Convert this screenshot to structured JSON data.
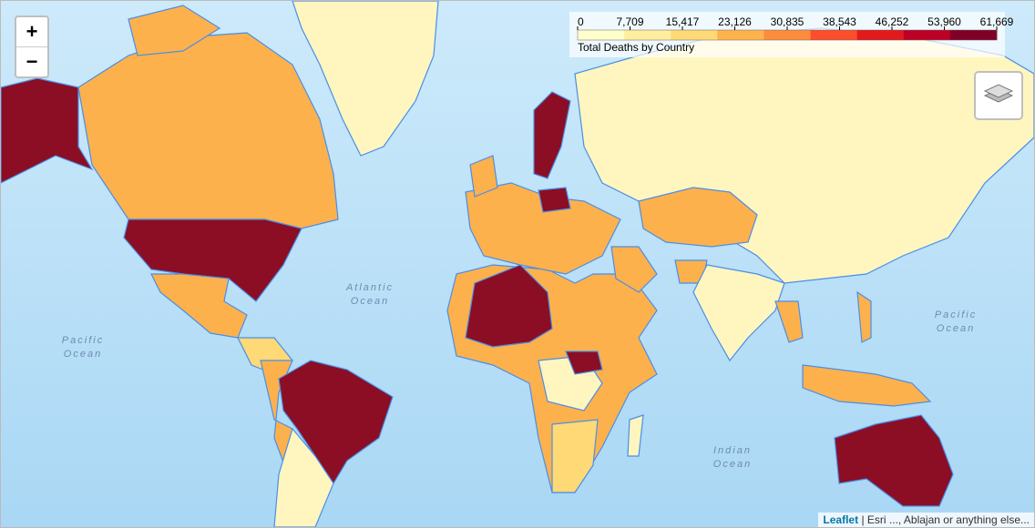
{
  "zoom": {
    "in": "+",
    "out": "−"
  },
  "legend": {
    "title": "Total Deaths by Country",
    "ticks": [
      0,
      {
        "value": 7709,
        "label": "7,709"
      },
      {
        "value": 15417,
        "label": "15,417"
      },
      {
        "value": 23126,
        "label": "23,126"
      },
      {
        "value": 30835,
        "label": "30,835"
      },
      {
        "value": 38543,
        "label": "38,543"
      },
      {
        "value": 46252,
        "label": "46,252"
      },
      {
        "value": 53960,
        "label": "53,960"
      },
      {
        "value": 61669,
        "label": "61,669"
      }
    ],
    "colors": [
      "#ffffcc",
      "#ffeda0",
      "#fed976",
      "#feb24c",
      "#fd8d3c",
      "#fc4e2a",
      "#e31a1c",
      "#bd0026",
      "#800026"
    ]
  },
  "ocean_labels": [
    {
      "lines": [
        "Atlantic",
        "Ocean"
      ]
    },
    {
      "lines": [
        "Pacific",
        "Ocean"
      ]
    },
    {
      "lines": [
        "Pacific",
        "Ocean"
      ]
    },
    {
      "lines": [
        "Indian",
        "Ocean"
      ]
    }
  ],
  "attribution": {
    "link": "Leaflet",
    "text": "| Esri ..., Ablajan or anything else..."
  }
}
